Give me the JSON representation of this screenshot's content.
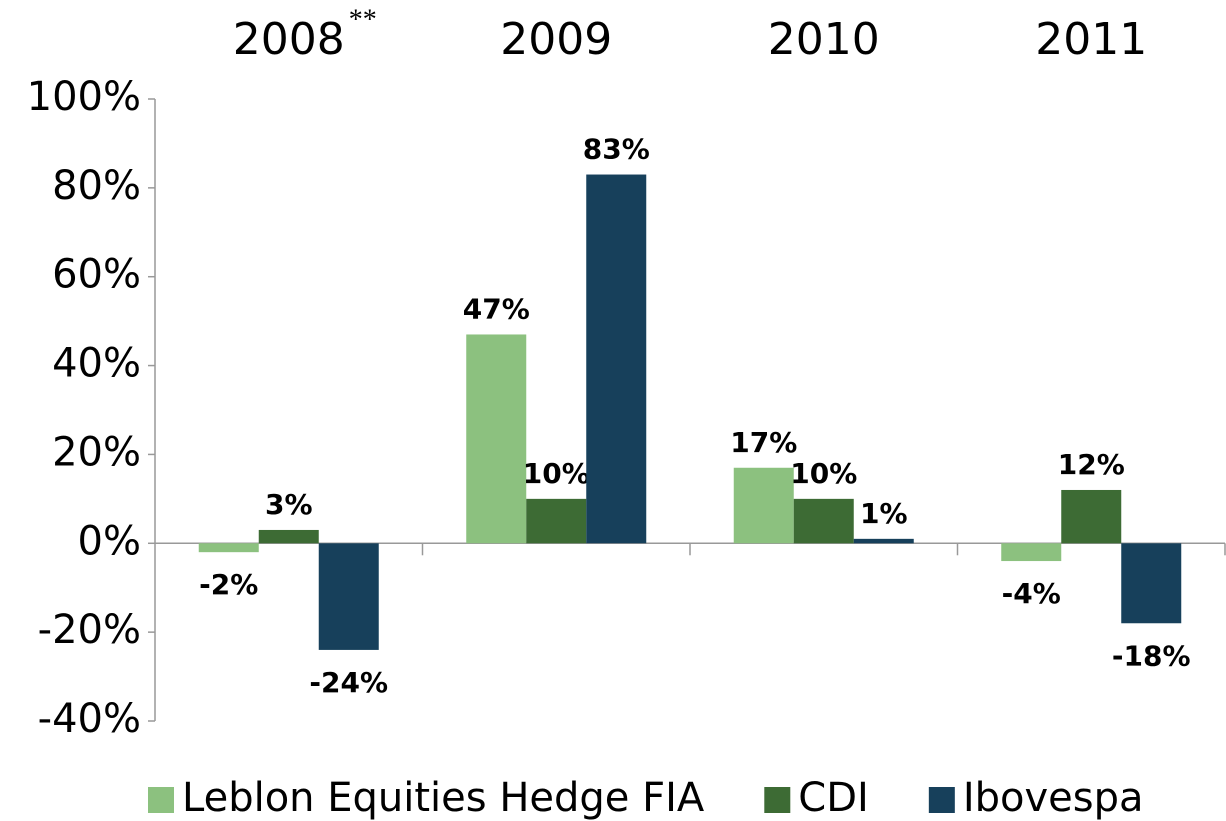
{
  "chart_data": {
    "type": "bar",
    "categories": [
      "2008",
      "2009",
      "2010",
      "2011"
    ],
    "annotation": "**",
    "series": [
      {
        "name": "Leblon Equities Hedge FIA",
        "color": "#8cc17f",
        "values": [
          -2,
          47,
          17,
          -4
        ],
        "value_labels": [
          "-2%",
          "47%",
          "17%",
          "-4%"
        ]
      },
      {
        "name": "CDI",
        "color": "#3d6b34",
        "values": [
          3,
          10,
          10,
          12
        ],
        "value_labels": [
          "3%",
          "10%",
          "10%",
          "12%"
        ]
      },
      {
        "name": "Ibovespa",
        "color": "#17405b",
        "values": [
          -24,
          83,
          1,
          -18
        ],
        "value_labels": [
          "-24%",
          "83%",
          "1%",
          "-18%"
        ]
      }
    ],
    "ylim": [
      -40,
      100
    ],
    "yticks": [
      {
        "value": -40,
        "label": "-40%"
      },
      {
        "value": -20,
        "label": "-20%"
      },
      {
        "value": 0,
        "label": "0%"
      },
      {
        "value": 20,
        "label": "20%"
      },
      {
        "value": 40,
        "label": "40%"
      },
      {
        "value": 60,
        "label": "60%"
      },
      {
        "value": 80,
        "label": "80%"
      },
      {
        "value": 100,
        "label": "100%"
      }
    ],
    "legend": "bottom"
  }
}
